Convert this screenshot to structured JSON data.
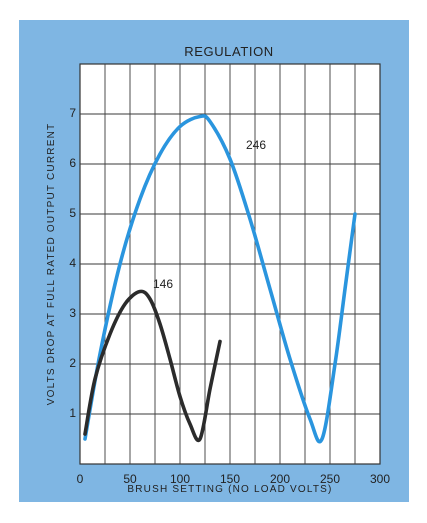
{
  "chart_data": {
    "type": "line",
    "title": "REGULATION",
    "xlabel": "BRUSH  SETTING  (NO LOAD VOLTS)",
    "ylabel": "VOLTS  DROP  AT  FULL  RATED  OUTPUT  CURRENT",
    "xlim": [
      0,
      300
    ],
    "ylim": [
      0,
      8
    ],
    "x_ticks": [
      "0",
      "50",
      "100",
      "150",
      "200",
      "250",
      "300"
    ],
    "y_ticks": [
      "1",
      "2",
      "3",
      "4",
      "5",
      "6",
      "7"
    ],
    "grid": true,
    "legend": "none",
    "series": [
      {
        "name": "246",
        "color": "#2a95de",
        "x": [
          5,
          20,
          40,
          60,
          80,
          100,
          120,
          130,
          150,
          170,
          190,
          210,
          230,
          242,
          255,
          265,
          275
        ],
        "y": [
          0.5,
          2.2,
          4.0,
          5.3,
          6.2,
          6.75,
          6.95,
          6.85,
          6.1,
          4.9,
          3.5,
          2.1,
          0.9,
          0.5,
          2.0,
          3.5,
          5.0
        ]
      },
      {
        "name": "146",
        "color": "#2b2b2b",
        "x": [
          5,
          15,
          30,
          45,
          60,
          70,
          80,
          90,
          100,
          110,
          120,
          130,
          140
        ],
        "y": [
          0.6,
          1.7,
          2.6,
          3.2,
          3.45,
          3.3,
          2.8,
          2.1,
          1.35,
          0.8,
          0.5,
          1.5,
          2.45
        ]
      }
    ],
    "annotations": [
      {
        "text": "246",
        "series": 0
      },
      {
        "text": "146",
        "series": 1
      }
    ]
  }
}
